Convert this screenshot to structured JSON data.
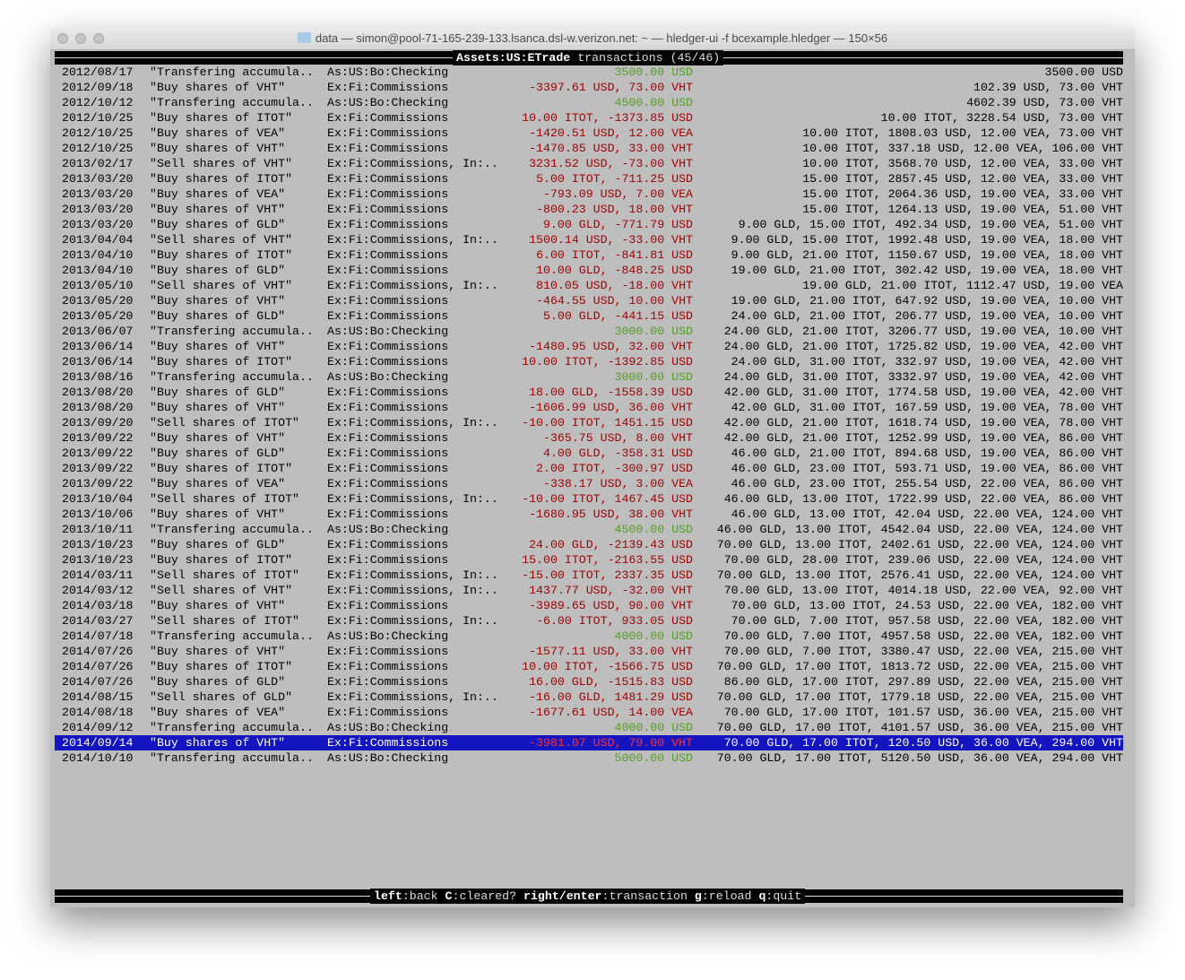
{
  "window": {
    "title": "data — simon@pool-71-165-239-133.lsanca.dsl-w.verizon.net: ~ — hledger-ui -f bcexample.hledger — 150×56"
  },
  "header": {
    "account": "Assets:US:ETrade",
    "label": "transactions",
    "count": "(45/46)"
  },
  "colors": {
    "background": "#bebebe",
    "negative": "#a40000",
    "positive": "#4ea21a",
    "selection": "#1414c0"
  },
  "selected_index": 44,
  "rows": [
    [
      "2012/08/17",
      "\"Transfering accumula..",
      "As:US:Bo:Checking",
      "3500.00 USD",
      "3500.00 USD"
    ],
    [
      "2012/09/18",
      "\"Buy shares of VHT\"",
      "Ex:Fi:Commissions",
      "-3397.61 USD, 73.00 VHT",
      "102.39 USD, 73.00 VHT"
    ],
    [
      "2012/10/12",
      "\"Transfering accumula..",
      "As:US:Bo:Checking",
      "4500.00 USD",
      "4602.39 USD, 73.00 VHT"
    ],
    [
      "2012/10/25",
      "\"Buy shares of ITOT\"",
      "Ex:Fi:Commissions",
      "10.00 ITOT, -1373.85 USD",
      "10.00 ITOT, 3228.54 USD, 73.00 VHT"
    ],
    [
      "2012/10/25",
      "\"Buy shares of VEA\"",
      "Ex:Fi:Commissions",
      "-1420.51 USD, 12.00 VEA",
      "10.00 ITOT, 1808.03 USD, 12.00 VEA, 73.00 VHT"
    ],
    [
      "2012/10/25",
      "\"Buy shares of VHT\"",
      "Ex:Fi:Commissions",
      "-1470.85 USD, 33.00 VHT",
      "10.00 ITOT, 337.18 USD, 12.00 VEA, 106.00 VHT"
    ],
    [
      "2013/02/17",
      "\"Sell shares of VHT\"",
      "Ex:Fi:Commissions, In:..",
      "3231.52 USD, -73.00 VHT",
      "10.00 ITOT, 3568.70 USD, 12.00 VEA, 33.00 VHT"
    ],
    [
      "2013/03/20",
      "\"Buy shares of ITOT\"",
      "Ex:Fi:Commissions",
      "5.00 ITOT, -711.25 USD",
      "15.00 ITOT, 2857.45 USD, 12.00 VEA, 33.00 VHT"
    ],
    [
      "2013/03/20",
      "\"Buy shares of VEA\"",
      "Ex:Fi:Commissions",
      "-793.09 USD, 7.00 VEA",
      "15.00 ITOT, 2064.36 USD, 19.00 VEA, 33.00 VHT"
    ],
    [
      "2013/03/20",
      "\"Buy shares of VHT\"",
      "Ex:Fi:Commissions",
      "-800.23 USD, 18.00 VHT",
      "15.00 ITOT, 1264.13 USD, 19.00 VEA, 51.00 VHT"
    ],
    [
      "2013/03/20",
      "\"Buy shares of GLD\"",
      "Ex:Fi:Commissions",
      "9.00 GLD, -771.79 USD",
      "9.00 GLD, 15.00 ITOT, 492.34 USD, 19.00 VEA, 51.00 VHT"
    ],
    [
      "2013/04/04",
      "\"Sell shares of VHT\"",
      "Ex:Fi:Commissions, In:..",
      "1500.14 USD, -33.00 VHT",
      "9.00 GLD, 15.00 ITOT, 1992.48 USD, 19.00 VEA, 18.00 VHT"
    ],
    [
      "2013/04/10",
      "\"Buy shares of ITOT\"",
      "Ex:Fi:Commissions",
      "6.00 ITOT, -841.81 USD",
      "9.00 GLD, 21.00 ITOT, 1150.67 USD, 19.00 VEA, 18.00 VHT"
    ],
    [
      "2013/04/10",
      "\"Buy shares of GLD\"",
      "Ex:Fi:Commissions",
      "10.00 GLD, -848.25 USD",
      "19.00 GLD, 21.00 ITOT, 302.42 USD, 19.00 VEA, 18.00 VHT"
    ],
    [
      "2013/05/10",
      "\"Sell shares of VHT\"",
      "Ex:Fi:Commissions, In:..",
      "810.05 USD, -18.00 VHT",
      "19.00 GLD, 21.00 ITOT, 1112.47 USD, 19.00 VEA"
    ],
    [
      "2013/05/20",
      "\"Buy shares of VHT\"",
      "Ex:Fi:Commissions",
      "-464.55 USD, 10.00 VHT",
      "19.00 GLD, 21.00 ITOT, 647.92 USD, 19.00 VEA, 10.00 VHT"
    ],
    [
      "2013/05/20",
      "\"Buy shares of GLD\"",
      "Ex:Fi:Commissions",
      "5.00 GLD, -441.15 USD",
      "24.00 GLD, 21.00 ITOT, 206.77 USD, 19.00 VEA, 10.00 VHT"
    ],
    [
      "2013/06/07",
      "\"Transfering accumula..",
      "As:US:Bo:Checking",
      "3000.00 USD",
      "24.00 GLD, 21.00 ITOT, 3206.77 USD, 19.00 VEA, 10.00 VHT"
    ],
    [
      "2013/06/14",
      "\"Buy shares of VHT\"",
      "Ex:Fi:Commissions",
      "-1480.95 USD, 32.00 VHT",
      "24.00 GLD, 21.00 ITOT, 1725.82 USD, 19.00 VEA, 42.00 VHT"
    ],
    [
      "2013/06/14",
      "\"Buy shares of ITOT\"",
      "Ex:Fi:Commissions",
      "10.00 ITOT, -1392.85 USD",
      "24.00 GLD, 31.00 ITOT, 332.97 USD, 19.00 VEA, 42.00 VHT"
    ],
    [
      "2013/08/16",
      "\"Transfering accumula..",
      "As:US:Bo:Checking",
      "3000.00 USD",
      "24.00 GLD, 31.00 ITOT, 3332.97 USD, 19.00 VEA, 42.00 VHT"
    ],
    [
      "2013/08/20",
      "\"Buy shares of GLD\"",
      "Ex:Fi:Commissions",
      "18.00 GLD, -1558.39 USD",
      "42.00 GLD, 31.00 ITOT, 1774.58 USD, 19.00 VEA, 42.00 VHT"
    ],
    [
      "2013/08/20",
      "\"Buy shares of VHT\"",
      "Ex:Fi:Commissions",
      "-1606.99 USD, 36.00 VHT",
      "42.00 GLD, 31.00 ITOT, 167.59 USD, 19.00 VEA, 78.00 VHT"
    ],
    [
      "2013/09/20",
      "\"Sell shares of ITOT\"",
      "Ex:Fi:Commissions, In:..",
      "-10.00 ITOT, 1451.15 USD",
      "42.00 GLD, 21.00 ITOT, 1618.74 USD, 19.00 VEA, 78.00 VHT"
    ],
    [
      "2013/09/22",
      "\"Buy shares of VHT\"",
      "Ex:Fi:Commissions",
      "-365.75 USD, 8.00 VHT",
      "42.00 GLD, 21.00 ITOT, 1252.99 USD, 19.00 VEA, 86.00 VHT"
    ],
    [
      "2013/09/22",
      "\"Buy shares of GLD\"",
      "Ex:Fi:Commissions",
      "4.00 GLD, -358.31 USD",
      "46.00 GLD, 21.00 ITOT, 894.68 USD, 19.00 VEA, 86.00 VHT"
    ],
    [
      "2013/09/22",
      "\"Buy shares of ITOT\"",
      "Ex:Fi:Commissions",
      "2.00 ITOT, -300.97 USD",
      "46.00 GLD, 23.00 ITOT, 593.71 USD, 19.00 VEA, 86.00 VHT"
    ],
    [
      "2013/09/22",
      "\"Buy shares of VEA\"",
      "Ex:Fi:Commissions",
      "-338.17 USD, 3.00 VEA",
      "46.00 GLD, 23.00 ITOT, 255.54 USD, 22.00 VEA, 86.00 VHT"
    ],
    [
      "2013/10/04",
      "\"Sell shares of ITOT\"",
      "Ex:Fi:Commissions, In:..",
      "-10.00 ITOT, 1467.45 USD",
      "46.00 GLD, 13.00 ITOT, 1722.99 USD, 22.00 VEA, 86.00 VHT"
    ],
    [
      "2013/10/06",
      "\"Buy shares of VHT\"",
      "Ex:Fi:Commissions",
      "-1680.95 USD, 38.00 VHT",
      "46.00 GLD, 13.00 ITOT, 42.04 USD, 22.00 VEA, 124.00 VHT"
    ],
    [
      "2013/10/11",
      "\"Transfering accumula..",
      "As:US:Bo:Checking",
      "4500.00 USD",
      "46.00 GLD, 13.00 ITOT, 4542.04 USD, 22.00 VEA, 124.00 VHT"
    ],
    [
      "2013/10/23",
      "\"Buy shares of GLD\"",
      "Ex:Fi:Commissions",
      "24.00 GLD, -2139.43 USD",
      "70.00 GLD, 13.00 ITOT, 2402.61 USD, 22.00 VEA, 124.00 VHT"
    ],
    [
      "2013/10/23",
      "\"Buy shares of ITOT\"",
      "Ex:Fi:Commissions",
      "15.00 ITOT, -2163.55 USD",
      "70.00 GLD, 28.00 ITOT, 239.06 USD, 22.00 VEA, 124.00 VHT"
    ],
    [
      "2014/03/11",
      "\"Sell shares of ITOT\"",
      "Ex:Fi:Commissions, In:..",
      "-15.00 ITOT, 2337.35 USD",
      "70.00 GLD, 13.00 ITOT, 2576.41 USD, 22.00 VEA, 124.00 VHT"
    ],
    [
      "2014/03/12",
      "\"Sell shares of VHT\"",
      "Ex:Fi:Commissions, In:..",
      "1437.77 USD, -32.00 VHT",
      "70.00 GLD, 13.00 ITOT, 4014.18 USD, 22.00 VEA, 92.00 VHT"
    ],
    [
      "2014/03/18",
      "\"Buy shares of VHT\"",
      "Ex:Fi:Commissions",
      "-3989.65 USD, 90.00 VHT",
      "70.00 GLD, 13.00 ITOT, 24.53 USD, 22.00 VEA, 182.00 VHT"
    ],
    [
      "2014/03/27",
      "\"Sell shares of ITOT\"",
      "Ex:Fi:Commissions, In:..",
      "-6.00 ITOT, 933.05 USD",
      "70.00 GLD, 7.00 ITOT, 957.58 USD, 22.00 VEA, 182.00 VHT"
    ],
    [
      "2014/07/18",
      "\"Transfering accumula..",
      "As:US:Bo:Checking",
      "4000.00 USD",
      "70.00 GLD, 7.00 ITOT, 4957.58 USD, 22.00 VEA, 182.00 VHT"
    ],
    [
      "2014/07/26",
      "\"Buy shares of VHT\"",
      "Ex:Fi:Commissions",
      "-1577.11 USD, 33.00 VHT",
      "70.00 GLD, 7.00 ITOT, 3380.47 USD, 22.00 VEA, 215.00 VHT"
    ],
    [
      "2014/07/26",
      "\"Buy shares of ITOT\"",
      "Ex:Fi:Commissions",
      "10.00 ITOT, -1566.75 USD",
      "70.00 GLD, 17.00 ITOT, 1813.72 USD, 22.00 VEA, 215.00 VHT"
    ],
    [
      "2014/07/26",
      "\"Buy shares of GLD\"",
      "Ex:Fi:Commissions",
      "16.00 GLD, -1515.83 USD",
      "86.00 GLD, 17.00 ITOT, 297.89 USD, 22.00 VEA, 215.00 VHT"
    ],
    [
      "2014/08/15",
      "\"Sell shares of GLD\"",
      "Ex:Fi:Commissions, In:..",
      "-16.00 GLD, 1481.29 USD",
      "70.00 GLD, 17.00 ITOT, 1779.18 USD, 22.00 VEA, 215.00 VHT"
    ],
    [
      "2014/08/18",
      "\"Buy shares of VEA\"",
      "Ex:Fi:Commissions",
      "-1677.61 USD, 14.00 VEA",
      "70.00 GLD, 17.00 ITOT, 101.57 USD, 36.00 VEA, 215.00 VHT"
    ],
    [
      "2014/09/12",
      "\"Transfering accumula..",
      "As:US:Bo:Checking",
      "4000.00 USD",
      "70.00 GLD, 17.00 ITOT, 4101.57 USD, 36.00 VEA, 215.00 VHT"
    ],
    [
      "2014/09/14",
      "\"Buy shares of VHT\"",
      "Ex:Fi:Commissions",
      "-3981.07 USD, 79.00 VHT",
      "70.00 GLD, 17.00 ITOT, 120.50 USD, 36.00 VEA, 294.00 VHT"
    ],
    [
      "2014/10/10",
      "\"Transfering accumula..",
      "As:US:Bo:Checking",
      "5000.00 USD",
      "70.00 GLD, 17.00 ITOT, 5120.50 USD, 36.00 VEA, 294.00 VHT"
    ]
  ],
  "footer": {
    "keys": [
      {
        "key": "left",
        "action": "back"
      },
      {
        "key": "C",
        "action": "cleared?"
      },
      {
        "key": "right/enter",
        "action": "transaction"
      },
      {
        "key": "g",
        "action": "reload"
      },
      {
        "key": "q",
        "action": "quit"
      }
    ]
  }
}
